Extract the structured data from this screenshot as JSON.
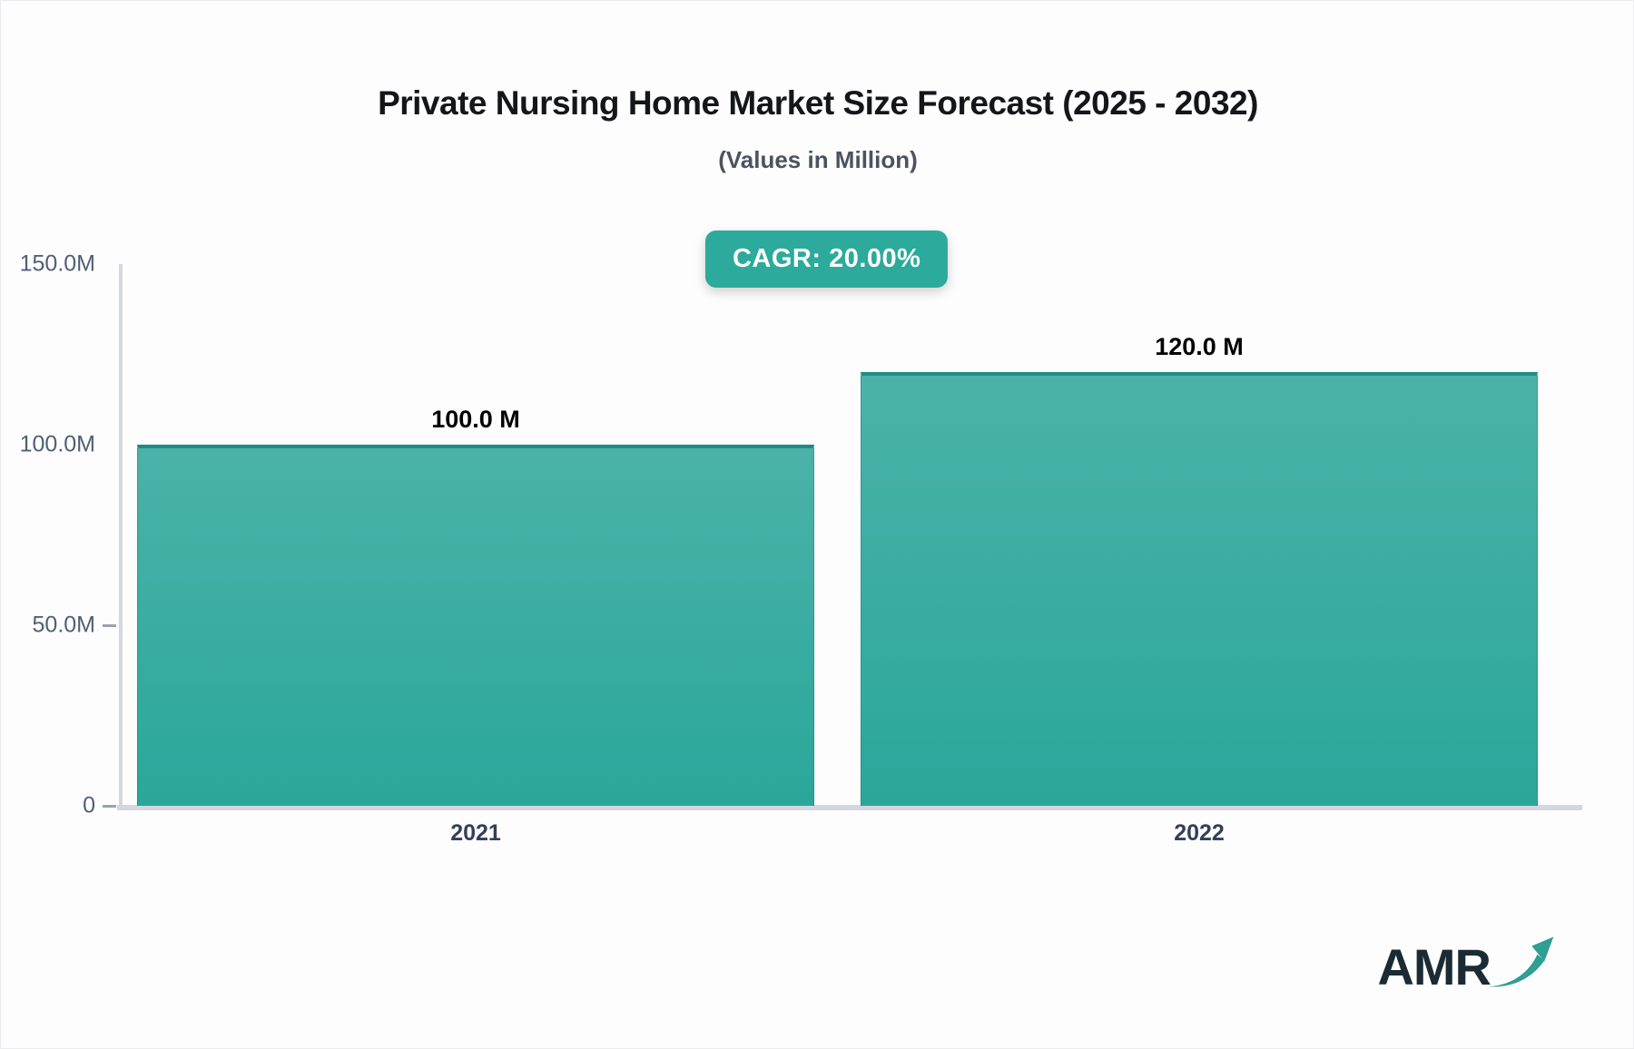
{
  "header": {
    "title": "Private Nursing Home Market Size Forecast (2025 - 2032)",
    "subtitle": "(Values in Million)"
  },
  "badge": {
    "label": "CAGR: 20.00%",
    "color": "#2caa9c"
  },
  "chart_data": {
    "type": "bar",
    "categories": [
      "2021",
      "2022"
    ],
    "values": [
      100.0,
      120.0
    ],
    "value_labels": [
      "100.0 M",
      "120.0 M"
    ],
    "title": "Private Nursing Home Market Size Forecast (2025 - 2032)",
    "subtitle": "(Values in Million)",
    "xlabel": "",
    "ylabel": "",
    "ylim": [
      0,
      150
    ],
    "yticks": [
      "150.0M",
      "100.0M",
      "50.0M",
      "0"
    ],
    "grid": false,
    "legend": false,
    "colors": {
      "bar_gradient_top": "#4bb2a9",
      "bar_gradient_bottom": "#2aa79a",
      "bar_top_border": "#1e8c84",
      "axis_line": "#d3d7de",
      "ytick_text": "#4f6076",
      "xtick_text": "#33405a"
    }
  },
  "logo": {
    "text": "AMR",
    "color": "#1b2b33",
    "arrow_color": "#2f9e93"
  }
}
